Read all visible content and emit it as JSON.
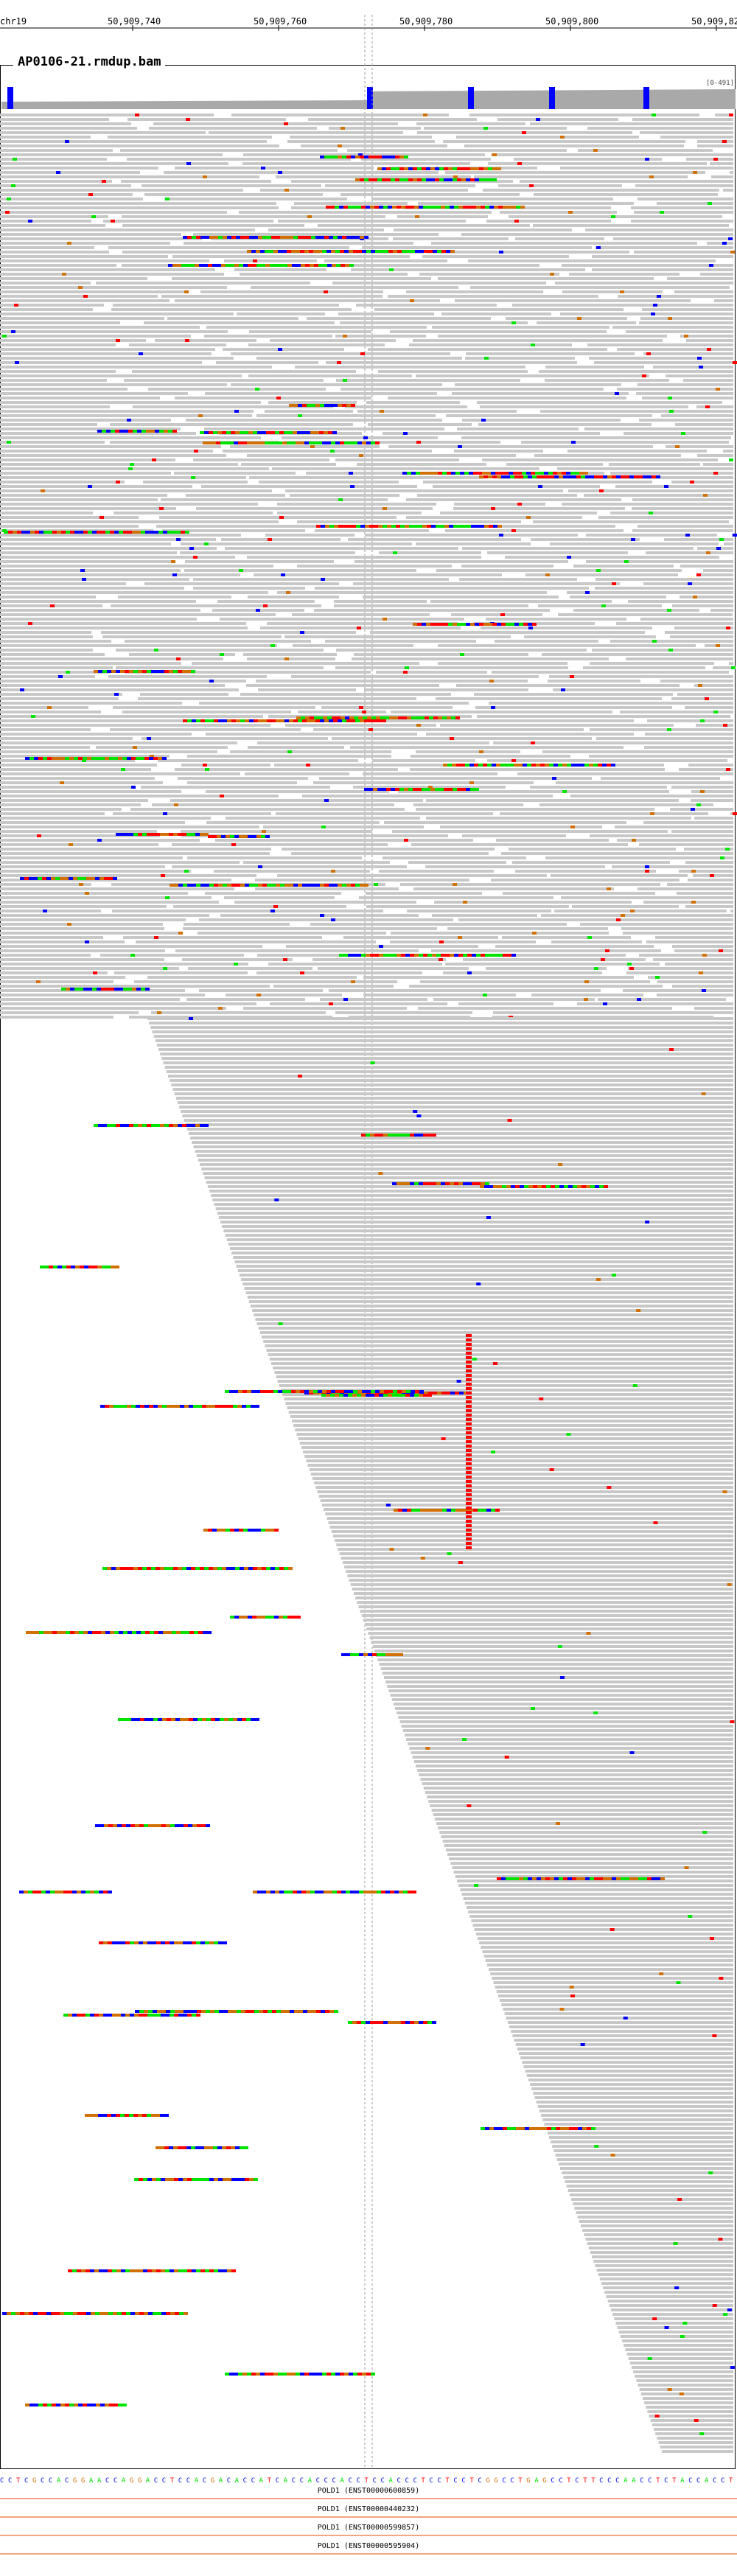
{
  "ruler": {
    "chrom": "chr19",
    "ticks": [
      "50,909,740",
      "50,909,760",
      "50,909,780",
      "50,909,800",
      "50,909,82"
    ]
  },
  "track": {
    "title": "AP0106-21.rmdup.bam",
    "coverage_scale": "[0-491]"
  },
  "reference": {
    "sequence": "CCTCGCCACGGAACCAGGACCTCCACGACACCATCACCACCCACCTCCACCCTCCTCCTCGGCCTGAGCCTCTTCCCAACCTCTACCACCT"
  },
  "transcripts": [
    {
      "label": "POLD1 (ENST00000600859)"
    },
    {
      "label": "POLD1 (ENST00000440232)"
    },
    {
      "label": "POLD1 (ENST00000599857)"
    },
    {
      "label": "POLD1 (ENST00000595904)"
    }
  ],
  "colors": {
    "read": "#c8c8c8",
    "A": "#00e400",
    "C": "#0000ff",
    "G": "#d17105",
    "T": "#ff0000",
    "insertion": "#8a2be2",
    "coverage": "#a9a9a9",
    "transcript_line": "#f4a582"
  }
}
